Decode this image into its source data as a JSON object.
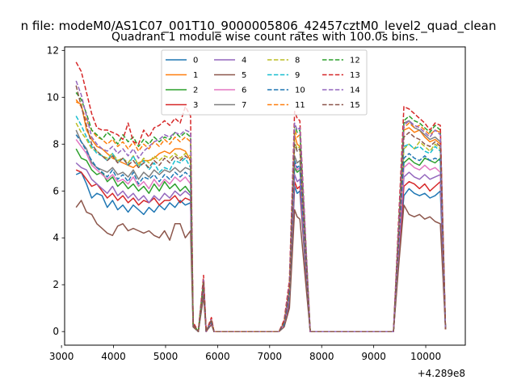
{
  "figure": {
    "suptitle": "n file: modeM0/AS1C07_001T10_9000005806_42457cztM0_level2_quad_clean"
  },
  "chart_data": {
    "type": "line",
    "title": "Quadrant 1 module wise count rates with 100.0s bins.",
    "xlabel": "",
    "ylabel": "",
    "x_offset_label": "+4.289e8",
    "xlim": [
      3060,
      10760
    ],
    "ylim": [
      -0.58,
      12.15
    ],
    "xticks": [
      3000,
      4000,
      5000,
      6000,
      7000,
      8000,
      9000,
      10000
    ],
    "yticks": [
      0,
      2,
      4,
      6,
      8,
      10,
      12
    ],
    "grid": false,
    "legend": {
      "placement": "top-center",
      "columns": 4
    },
    "x": [
      3280,
      3380,
      3480,
      3580,
      3680,
      3780,
      3880,
      3980,
      4080,
      4180,
      4280,
      4380,
      4480,
      4580,
      4680,
      4780,
      4880,
      4980,
      5080,
      5180,
      5280,
      5380,
      5480,
      5530,
      5630,
      5730,
      5780,
      5880,
      5930,
      6030,
      6130,
      7180,
      7280,
      7380,
      7480,
      7530,
      7580,
      7780,
      9380,
      9480,
      9580,
      9680,
      9780,
      9880,
      9980,
      10080,
      10180,
      10280,
      10380
    ],
    "series": [
      {
        "name": "0",
        "color": "#1f77b4",
        "dashed": false,
        "values": [
          6.7,
          6.8,
          6.3,
          5.7,
          5.9,
          5.8,
          5.3,
          5.6,
          5.2,
          5.4,
          5.1,
          5.4,
          5.2,
          5.0,
          5.3,
          5.1,
          5.4,
          5.2,
          5.5,
          5.3,
          5.6,
          5.4,
          5.5,
          0.2,
          0.0,
          1.7,
          0.0,
          0.4,
          0.0,
          0.0,
          0.0,
          0.0,
          0.3,
          1.2,
          6.2,
          5.9,
          6.0,
          0.0,
          0.0,
          3.1,
          5.8,
          6.1,
          5.9,
          5.8,
          5.9,
          5.7,
          5.8,
          6.0,
          0.1
        ]
      },
      {
        "name": "1",
        "color": "#ff7f0e",
        "dashed": false,
        "values": [
          9.8,
          9.7,
          8.6,
          8.2,
          7.9,
          7.8,
          7.6,
          7.4,
          7.3,
          7.2,
          7.1,
          7.0,
          7.2,
          7.3,
          7.3,
          7.4,
          7.6,
          7.7,
          7.6,
          7.8,
          7.8,
          7.7,
          7.3,
          0.3,
          0.0,
          2.2,
          0.0,
          0.5,
          0.0,
          0.0,
          0.0,
          0.0,
          0.4,
          1.8,
          8.4,
          8.0,
          7.9,
          0.0,
          0.0,
          4.0,
          8.6,
          8.7,
          8.5,
          8.6,
          8.3,
          8.1,
          8.2,
          8.0,
          0.1
        ]
      },
      {
        "name": "2",
        "color": "#2ca02c",
        "dashed": false,
        "values": [
          7.8,
          7.4,
          7.3,
          6.9,
          6.7,
          6.8,
          6.4,
          6.6,
          6.2,
          6.4,
          6.1,
          6.3,
          6.0,
          6.2,
          5.9,
          6.3,
          6.0,
          6.4,
          6.1,
          6.3,
          6.0,
          6.2,
          5.9,
          0.3,
          0.0,
          1.9,
          0.0,
          0.4,
          0.0,
          0.0,
          0.0,
          0.0,
          0.3,
          1.5,
          7.0,
          6.8,
          6.9,
          0.0,
          0.0,
          3.6,
          7.2,
          7.4,
          7.2,
          7.1,
          7.4,
          7.3,
          7.2,
          7.4,
          0.1
        ]
      },
      {
        "name": "3",
        "color": "#d62728",
        "dashed": false,
        "values": [
          6.9,
          6.8,
          6.5,
          6.2,
          6.3,
          6.0,
          5.7,
          5.9,
          5.6,
          5.8,
          5.5,
          5.7,
          5.4,
          5.6,
          5.5,
          5.7,
          5.4,
          5.6,
          5.6,
          5.8,
          5.5,
          5.7,
          5.6,
          0.3,
          0.0,
          1.8,
          0.0,
          0.4,
          0.0,
          0.0,
          0.0,
          0.0,
          0.3,
          1.3,
          6.4,
          6.1,
          6.2,
          0.0,
          0.0,
          3.2,
          6.2,
          6.4,
          6.3,
          6.1,
          6.3,
          6.0,
          6.2,
          6.4,
          0.1
        ]
      },
      {
        "name": "4",
        "color": "#9467bd",
        "dashed": false,
        "values": [
          7.2,
          7.0,
          6.9,
          6.5,
          6.3,
          6.1,
          5.9,
          6.2,
          5.8,
          6.0,
          5.7,
          5.9,
          5.6,
          5.8,
          5.5,
          5.8,
          5.6,
          5.9,
          5.7,
          6.0,
          5.8,
          6.0,
          5.8,
          0.3,
          0.0,
          1.9,
          0.0,
          0.4,
          0.0,
          0.0,
          0.0,
          0.0,
          0.3,
          1.4,
          6.7,
          6.4,
          6.5,
          0.0,
          0.0,
          3.4,
          6.6,
          6.8,
          6.6,
          6.5,
          6.7,
          6.5,
          6.6,
          6.7,
          0.1
        ]
      },
      {
        "name": "5",
        "color": "#8c564b",
        "dashed": false,
        "values": [
          5.3,
          5.6,
          5.1,
          5.0,
          4.6,
          4.4,
          4.2,
          4.1,
          4.5,
          4.6,
          4.3,
          4.4,
          4.3,
          4.2,
          4.3,
          4.1,
          4.0,
          4.3,
          3.9,
          4.6,
          4.6,
          4.0,
          4.3,
          0.2,
          0.0,
          1.5,
          0.0,
          0.3,
          0.0,
          0.0,
          0.0,
          0.0,
          0.2,
          1.0,
          5.2,
          4.9,
          4.8,
          0.0,
          0.0,
          2.8,
          5.4,
          5.0,
          4.9,
          5.0,
          4.8,
          4.9,
          4.7,
          4.6,
          0.1
        ]
      },
      {
        "name": "6",
        "color": "#e377c2",
        "dashed": false,
        "values": [
          8.2,
          7.9,
          7.6,
          7.1,
          6.9,
          6.7,
          6.5,
          6.7,
          6.4,
          6.5,
          6.3,
          6.6,
          6.2,
          6.4,
          6.1,
          6.5,
          6.2,
          6.5,
          6.3,
          6.6,
          6.4,
          6.6,
          6.3,
          0.3,
          0.0,
          2.0,
          0.0,
          0.4,
          0.0,
          0.0,
          0.0,
          0.0,
          0.3,
          1.6,
          7.2,
          6.9,
          7.0,
          0.0,
          0.0,
          3.7,
          7.0,
          7.2,
          7.0,
          6.9,
          7.1,
          6.9,
          7.0,
          6.8,
          0.1
        ]
      },
      {
        "name": "7",
        "color": "#7f7f7f",
        "dashed": false,
        "values": [
          8.6,
          8.1,
          7.8,
          7.2,
          7.0,
          6.9,
          6.8,
          7.0,
          6.7,
          6.8,
          6.6,
          6.9,
          6.5,
          6.8,
          6.6,
          6.9,
          6.7,
          6.9,
          6.8,
          7.0,
          6.8,
          7.0,
          6.9,
          0.3,
          0.0,
          2.1,
          0.0,
          0.5,
          0.0,
          0.0,
          0.0,
          0.0,
          0.4,
          1.7,
          7.5,
          7.2,
          7.3,
          0.0,
          0.0,
          4.0,
          8.9,
          9.0,
          8.7,
          8.6,
          8.4,
          8.2,
          8.3,
          8.1,
          0.1
        ]
      },
      {
        "name": "8",
        "color": "#bcbd22",
        "dashed": true,
        "values": [
          8.9,
          8.5,
          8.2,
          7.8,
          7.7,
          7.5,
          7.4,
          7.6,
          7.3,
          7.4,
          7.2,
          7.5,
          7.1,
          7.4,
          7.2,
          7.5,
          7.3,
          7.5,
          7.4,
          7.6,
          7.4,
          7.6,
          7.5,
          0.3,
          0.0,
          2.1,
          0.0,
          0.5,
          0.0,
          0.0,
          0.0,
          0.0,
          0.4,
          1.8,
          8.1,
          7.8,
          7.9,
          0.0,
          0.0,
          4.1,
          7.8,
          8.0,
          7.8,
          8.1,
          7.9,
          7.7,
          8.0,
          7.8,
          0.1
        ]
      },
      {
        "name": "9",
        "color": "#17becf",
        "dashed": true,
        "values": [
          9.2,
          8.8,
          8.3,
          7.9,
          7.6,
          7.5,
          7.3,
          7.6,
          7.2,
          7.4,
          7.1,
          7.5,
          7.0,
          7.3,
          6.9,
          7.2,
          6.8,
          7.0,
          6.9,
          7.3,
          7.2,
          7.4,
          7.0,
          0.3,
          0.0,
          2.1,
          0.0,
          0.5,
          0.0,
          0.0,
          0.0,
          0.0,
          0.4,
          1.8,
          8.0,
          7.7,
          7.8,
          0.0,
          0.0,
          4.0,
          7.9,
          8.0,
          7.8,
          7.9,
          7.7,
          7.6,
          7.9,
          7.7,
          0.1
        ]
      },
      {
        "name": "10",
        "color": "#1f77b4",
        "dashed": true,
        "values": [
          8.4,
          8.1,
          7.7,
          7.3,
          7.0,
          6.8,
          6.6,
          6.9,
          6.5,
          6.7,
          6.4,
          6.8,
          6.3,
          6.6,
          6.5,
          6.7,
          6.4,
          6.7,
          6.5,
          6.8,
          6.6,
          6.8,
          6.6,
          0.3,
          0.0,
          2.0,
          0.0,
          0.4,
          0.0,
          0.0,
          0.0,
          0.0,
          0.3,
          1.6,
          7.3,
          7.0,
          7.1,
          0.0,
          0.0,
          3.8,
          7.4,
          7.6,
          7.4,
          7.3,
          7.5,
          7.3,
          7.4,
          7.3,
          0.1
        ]
      },
      {
        "name": "11",
        "color": "#ff7f0e",
        "dashed": true,
        "values": [
          9.9,
          9.6,
          9.0,
          8.6,
          8.3,
          8.2,
          8.0,
          8.2,
          7.9,
          8.1,
          7.8,
          8.1,
          7.7,
          8.0,
          7.8,
          8.1,
          7.9,
          8.2,
          8.0,
          8.3,
          8.1,
          8.3,
          8.1,
          0.3,
          0.0,
          2.2,
          0.0,
          0.5,
          0.0,
          0.0,
          0.0,
          0.0,
          0.4,
          1.9,
          8.6,
          8.3,
          8.4,
          0.0,
          0.0,
          4.3,
          8.7,
          8.9,
          8.7,
          8.8,
          8.6,
          8.4,
          8.6,
          8.5,
          0.1
        ]
      },
      {
        "name": "12",
        "color": "#2ca02c",
        "dashed": true,
        "values": [
          10.2,
          9.9,
          9.3,
          8.6,
          8.4,
          8.2,
          8.5,
          8.3,
          8.0,
          8.4,
          8.1,
          8.3,
          7.9,
          8.2,
          8.0,
          8.3,
          8.1,
          8.3,
          8.2,
          8.5,
          8.3,
          8.5,
          8.3,
          0.3,
          0.0,
          2.2,
          0.0,
          0.5,
          0.0,
          0.0,
          0.0,
          0.0,
          0.4,
          1.9,
          8.8,
          8.5,
          8.6,
          0.0,
          0.0,
          4.4,
          9.0,
          9.2,
          9.0,
          8.9,
          8.7,
          8.5,
          8.8,
          8.6,
          0.1
        ]
      },
      {
        "name": "13",
        "color": "#d62728",
        "dashed": true,
        "values": [
          11.5,
          11.1,
          10.2,
          9.3,
          8.7,
          8.6,
          8.6,
          8.5,
          8.4,
          8.2,
          8.9,
          8.1,
          8.0,
          8.6,
          8.3,
          8.7,
          8.8,
          9.0,
          8.8,
          9.1,
          8.9,
          9.6,
          9.2,
          0.4,
          0.0,
          2.4,
          0.0,
          0.6,
          0.0,
          0.0,
          0.0,
          0.0,
          0.5,
          2.2,
          9.4,
          9.1,
          9.0,
          0.0,
          0.0,
          4.8,
          9.6,
          9.5,
          9.3,
          9.1,
          8.9,
          8.6,
          8.9,
          8.8,
          0.1
        ]
      },
      {
        "name": "14",
        "color": "#9467bd",
        "dashed": true,
        "values": [
          10.7,
          10.1,
          9.2,
          8.3,
          8.0,
          7.8,
          7.7,
          7.9,
          7.6,
          7.8,
          7.5,
          7.8,
          7.4,
          7.7,
          7.9,
          8.1,
          8.2,
          8.4,
          8.3,
          8.5,
          8.4,
          8.6,
          8.5,
          0.3,
          0.0,
          2.2,
          0.0,
          0.5,
          0.0,
          0.0,
          0.0,
          0.0,
          0.4,
          2.0,
          8.9,
          8.6,
          8.7,
          0.0,
          0.0,
          4.4,
          8.8,
          9.0,
          8.8,
          8.7,
          8.5,
          8.3,
          8.6,
          8.4,
          0.1
        ]
      },
      {
        "name": "15",
        "color": "#8c564b",
        "dashed": true,
        "values": [
          10.5,
          9.6,
          8.8,
          8.0,
          7.7,
          7.5,
          7.3,
          7.5,
          7.2,
          7.4,
          7.1,
          7.3,
          7.0,
          7.2,
          7.0,
          7.3,
          7.1,
          7.4,
          7.2,
          7.5,
          7.3,
          7.5,
          7.3,
          0.3,
          0.0,
          2.1,
          0.0,
          0.5,
          0.0,
          0.0,
          0.0,
          0.0,
          0.4,
          1.8,
          8.0,
          7.7,
          7.8,
          0.0,
          0.0,
          4.1,
          8.3,
          8.5,
          8.3,
          8.2,
          8.0,
          7.9,
          8.1,
          7.9,
          0.1
        ]
      }
    ]
  }
}
